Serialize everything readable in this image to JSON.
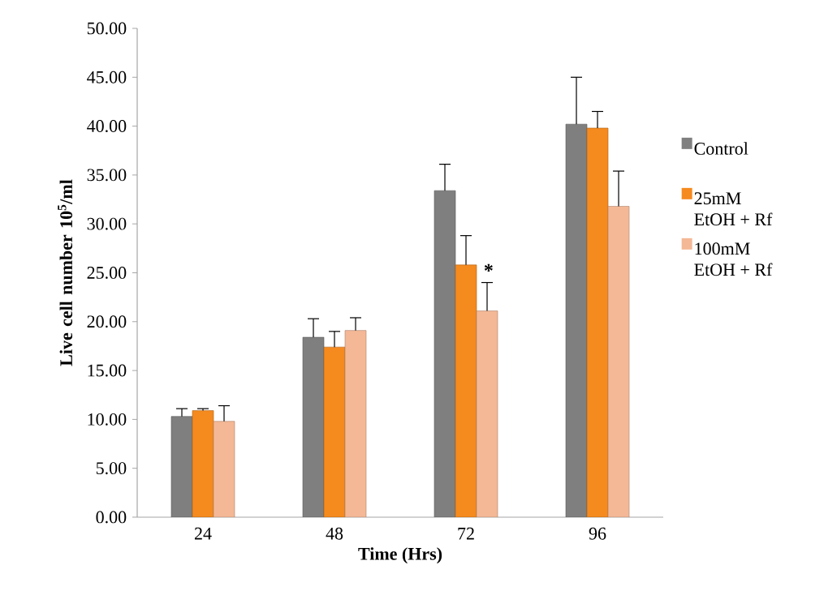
{
  "chart_data": {
    "type": "bar",
    "xlabel": "Time (Hrs)",
    "ylabel": "Live cell number 10$^{5}$/ml",
    "categories": [
      "24",
      "48",
      "72",
      "96"
    ],
    "series": [
      {
        "name": "Control",
        "color": "#7f7f7f",
        "values": [
          10.3,
          18.4,
          33.4,
          40.2
        ],
        "errors": [
          [
            10.3,
            11.1
          ],
          [
            18.4,
            20.3
          ],
          [
            33.4,
            36.1
          ],
          [
            40.2,
            45.0
          ]
        ]
      },
      {
        "name": "25mM EtOH + Rf",
        "color": "#f58a1f",
        "values": [
          10.9,
          17.4,
          25.8,
          39.8
        ],
        "errors": [
          [
            10.9,
            11.1
          ],
          [
            17.4,
            19.0
          ],
          [
            25.8,
            28.8
          ],
          [
            39.8,
            41.5
          ]
        ]
      },
      {
        "name": "100mM EtOH + Rf",
        "color": "#f4b896",
        "values": [
          9.8,
          19.1,
          21.1,
          31.8
        ],
        "errors": [
          [
            9.8,
            11.4
          ],
          [
            19.1,
            20.4
          ],
          [
            21.1,
            24.0
          ],
          [
            31.8,
            35.4
          ]
        ]
      }
    ],
    "ylim": [
      0,
      50
    ],
    "yticks": [
      {
        "value": 0,
        "label": "0.00"
      },
      {
        "value": 5,
        "label": "5.00"
      },
      {
        "value": 10,
        "label": "10.00"
      },
      {
        "value": 15,
        "label": "15.00"
      },
      {
        "value": 20,
        "label": "20.00"
      },
      {
        "value": 25,
        "label": "25.00"
      },
      {
        "value": 30,
        "label": "30.00"
      },
      {
        "value": 35,
        "label": "35.00"
      },
      {
        "value": 40,
        "label": "40.00"
      },
      {
        "value": 45,
        "label": "45.00"
      },
      {
        "value": 50,
        "label": "50.00"
      }
    ],
    "annotations": [
      "*"
    ],
    "legend": "right",
    "grid": false
  }
}
